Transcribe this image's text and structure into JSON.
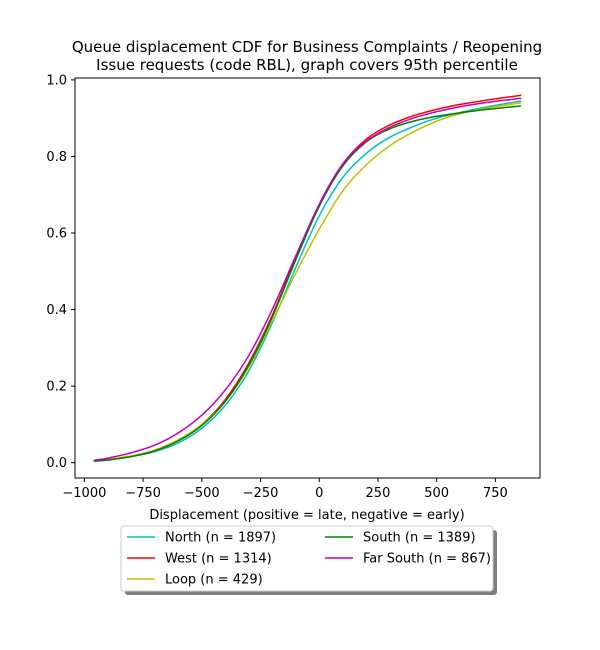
{
  "chart_data": {
    "type": "line",
    "title": [
      "Queue displacement CDF for Business Complaints / Reopening",
      "Issue  requests (code RBL), graph covers 95th percentile"
    ],
    "xlabel": "Displacement (positive = late, negative = early)",
    "ylabel": "",
    "xlim": [
      -1040,
      940
    ],
    "ylim": [
      -0.04,
      1.005
    ],
    "xticks": [
      -1000,
      -750,
      -500,
      -250,
      0,
      250,
      500,
      750
    ],
    "xtick_labels": [
      "−1000",
      "−750",
      "−500",
      "−250",
      "0",
      "250",
      "500",
      "750"
    ],
    "yticks": [
      0.0,
      0.2,
      0.4,
      0.6,
      0.8,
      1.0
    ],
    "ytick_labels": [
      "0.0",
      "0.2",
      "0.4",
      "0.6",
      "0.8",
      "1.0"
    ],
    "grid": false,
    "legend_position": "below-center",
    "legend_columns": 2,
    "x": [
      -960,
      -900,
      -800,
      -700,
      -600,
      -500,
      -400,
      -300,
      -200,
      -100,
      0,
      100,
      200,
      300,
      400,
      500,
      600,
      700,
      860
    ],
    "series": [
      {
        "name": "North (n = 1897)",
        "color": "#00bfbf",
        "values": [
          0.005,
          0.008,
          0.016,
          0.029,
          0.052,
          0.09,
          0.15,
          0.24,
          0.365,
          0.51,
          0.645,
          0.745,
          0.808,
          0.85,
          0.878,
          0.9,
          0.915,
          0.928,
          0.945
        ]
      },
      {
        "name": "West (n = 1314)",
        "color": "#ff0000",
        "values": [
          0.004,
          0.007,
          0.016,
          0.031,
          0.058,
          0.1,
          0.165,
          0.26,
          0.385,
          0.535,
          0.675,
          0.78,
          0.845,
          0.882,
          0.906,
          0.923,
          0.936,
          0.946,
          0.96
        ]
      },
      {
        "name": "Loop (n = 429)",
        "color": "#bfbf00",
        "values": [
          0.005,
          0.009,
          0.018,
          0.033,
          0.06,
          0.1,
          0.16,
          0.25,
          0.37,
          0.495,
          0.61,
          0.71,
          0.778,
          0.828,
          0.864,
          0.892,
          0.912,
          0.925,
          0.94
        ]
      },
      {
        "name": "South (n = 1389)",
        "color": "#008000",
        "values": [
          0.004,
          0.007,
          0.016,
          0.031,
          0.057,
          0.097,
          0.16,
          0.255,
          0.38,
          0.53,
          0.67,
          0.775,
          0.838,
          0.872,
          0.892,
          0.905,
          0.914,
          0.922,
          0.932
        ]
      },
      {
        "name": "Far South (n = 867)",
        "color": "#bf00bf",
        "values": [
          0.006,
          0.012,
          0.026,
          0.046,
          0.078,
          0.124,
          0.19,
          0.28,
          0.4,
          0.54,
          0.675,
          0.78,
          0.84,
          0.876,
          0.9,
          0.917,
          0.93,
          0.94,
          0.952
        ]
      }
    ]
  }
}
